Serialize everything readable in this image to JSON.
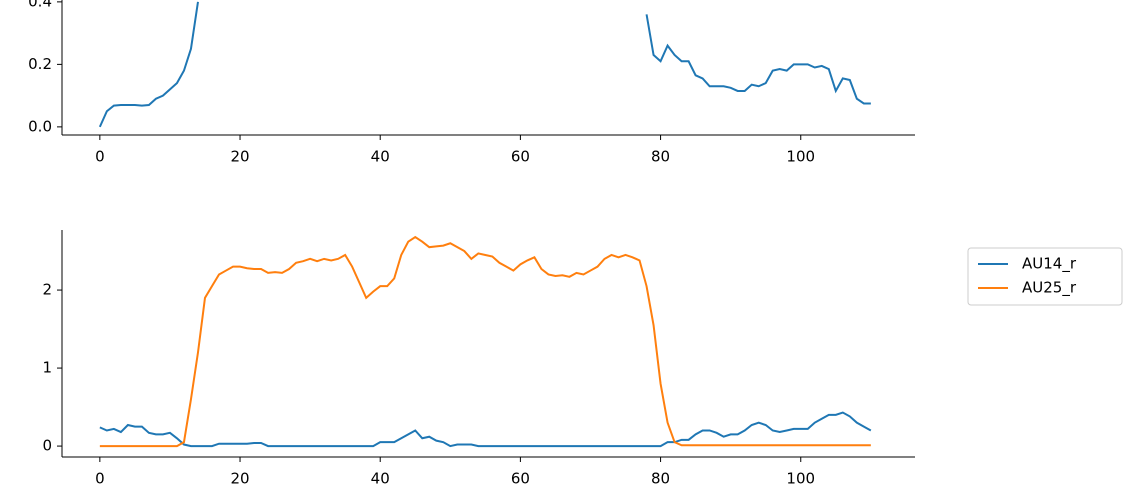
{
  "chart_data": [
    {
      "type": "line",
      "x": [
        0,
        1,
        2,
        3,
        4,
        5,
        6,
        7,
        8,
        9,
        10,
        11,
        12,
        13,
        14,
        15,
        78,
        79,
        80,
        81,
        82,
        83,
        84,
        85,
        86,
        87,
        88,
        89,
        90,
        91,
        92,
        93,
        94,
        95,
        96,
        97,
        98,
        99,
        100,
        101,
        102,
        103,
        104,
        105,
        106,
        107,
        108,
        109,
        110
      ],
      "series": [
        {
          "color": "#1f77b4",
          "values": [
            0,
            0.05,
            0.068,
            0.07,
            0.07,
            0.07,
            0.068,
            0.07,
            0.09,
            0.1,
            0.12,
            0.14,
            0.18,
            0.25,
            0.4,
            null,
            0.36,
            0.23,
            0.21,
            0.26,
            0.23,
            0.21,
            0.21,
            0.165,
            0.155,
            0.13,
            0.13,
            0.13,
            0.125,
            0.115,
            0.115,
            0.135,
            0.13,
            0.14,
            0.18,
            0.185,
            0.18,
            0.2,
            0.2,
            0.2,
            0.19,
            0.195,
            0.185,
            0.115,
            0.155,
            0.15,
            0.09,
            0.075,
            0.075
          ]
        }
      ],
      "xlim": [
        -5.4,
        116.3
      ],
      "xticks": [
        0,
        20,
        40,
        60,
        80,
        100
      ],
      "ylim": [
        -0.026,
        0.406
      ],
      "yticks": [
        {
          "value": 0,
          "label": "0.0"
        },
        0.2,
        0.4
      ]
    },
    {
      "type": "line",
      "x": [
        0,
        1,
        2,
        3,
        4,
        5,
        6,
        7,
        8,
        9,
        10,
        11,
        12,
        13,
        14,
        15,
        16,
        17,
        18,
        19,
        20,
        21,
        22,
        23,
        24,
        25,
        26,
        27,
        28,
        29,
        30,
        31,
        32,
        33,
        34,
        35,
        36,
        37,
        38,
        39,
        40,
        41,
        42,
        43,
        44,
        45,
        46,
        47,
        48,
        49,
        50,
        51,
        52,
        53,
        54,
        55,
        56,
        57,
        58,
        59,
        60,
        61,
        62,
        63,
        64,
        65,
        66,
        67,
        68,
        69,
        70,
        71,
        72,
        73,
        74,
        75,
        76,
        77,
        78,
        79,
        80,
        81,
        82,
        83,
        84,
        85,
        86,
        87,
        88,
        89,
        90,
        91,
        92,
        93,
        94,
        95,
        96,
        97,
        98,
        99,
        100,
        101,
        102,
        103,
        104,
        105,
        106,
        107,
        108,
        109,
        110
      ],
      "series": [
        {
          "name": "AU14_r",
          "color": "#1f77b4",
          "values": [
            0.24,
            0.2,
            0.22,
            0.18,
            0.27,
            0.25,
            0.25,
            0.17,
            0.15,
            0.15,
            0.17,
            0.1,
            0.02,
            0,
            0,
            0,
            0,
            0.03,
            0.03,
            0.03,
            0.03,
            0.03,
            0.04,
            0.04,
            0,
            0,
            0,
            0,
            0,
            0,
            0,
            0,
            0,
            0,
            0,
            0,
            0,
            0,
            0,
            0,
            0.05,
            0.05,
            0.05,
            0.1,
            0.15,
            0.2,
            0.1,
            0.12,
            0.07,
            0.05,
            0,
            0.02,
            0.02,
            0.02,
            0,
            0,
            0,
            0,
            0,
            0,
            0,
            0,
            0,
            0,
            0,
            0,
            0,
            0,
            0,
            0,
            0,
            0,
            0,
            0,
            0,
            0,
            0,
            0,
            0,
            0,
            0,
            0.05,
            0.05,
            0.08,
            0.08,
            0.15,
            0.2,
            0.2,
            0.17,
            0.12,
            0.15,
            0.15,
            0.2,
            0.27,
            0.3,
            0.27,
            0.2,
            0.18,
            0.2,
            0.22,
            0.22,
            0.22,
            0.3,
            0.35,
            0.4,
            0.4,
            0.43,
            0.38,
            0.3,
            0.25,
            0.2
          ]
        },
        {
          "name": "AU25_r",
          "color": "#ff7f0e",
          "values": [
            0,
            0,
            0,
            0,
            0,
            0,
            0,
            0,
            0,
            0,
            0,
            0,
            0.05,
            0.6,
            1.2,
            1.9,
            2.05,
            2.2,
            2.25,
            2.3,
            2.3,
            2.28,
            2.27,
            2.27,
            2.22,
            2.23,
            2.22,
            2.27,
            2.35,
            2.37,
            2.4,
            2.37,
            2.4,
            2.38,
            2.4,
            2.45,
            2.3,
            2.1,
            1.9,
            1.98,
            2.05,
            2.05,
            2.15,
            2.45,
            2.62,
            2.68,
            2.62,
            2.55,
            2.56,
            2.57,
            2.6,
            2.55,
            2.5,
            2.4,
            2.47,
            2.45,
            2.43,
            2.35,
            2.3,
            2.25,
            2.33,
            2.38,
            2.42,
            2.27,
            2.2,
            2.18,
            2.19,
            2.17,
            2.22,
            2.2,
            2.25,
            2.3,
            2.4,
            2.45,
            2.42,
            2.45,
            2.42,
            2.38,
            2.05,
            1.55,
            0.8,
            0.3,
            0.05,
            0.01,
            0.01,
            0.01,
            0.01,
            0.01,
            0.01,
            0.01,
            0.01,
            0.01,
            0.01,
            0.01,
            0.01,
            0.01,
            0.01,
            0.01,
            0.01,
            0.01,
            0.01,
            0.01,
            0.01,
            0.01,
            0.01,
            0.01,
            0.01,
            0.01,
            0.01,
            0.01,
            0.01
          ]
        }
      ],
      "xlim": [
        -5.4,
        116.3
      ],
      "xticks": [
        0,
        20,
        40,
        60,
        80,
        100
      ],
      "ylim": [
        -0.14,
        2.77
      ],
      "yticks": [
        0,
        1,
        2
      ],
      "legend": "right"
    }
  ]
}
